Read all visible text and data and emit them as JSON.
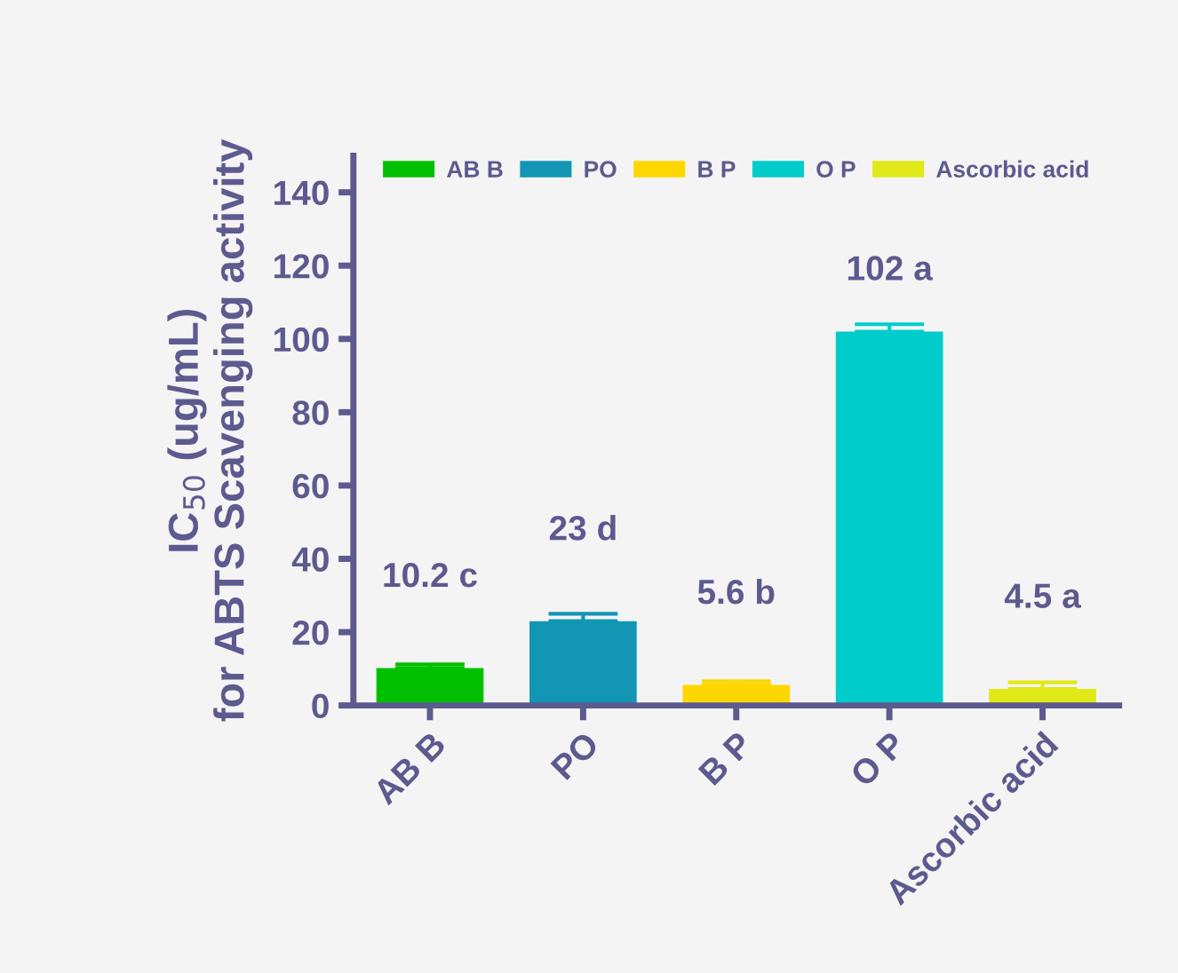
{
  "chart_data": {
    "type": "bar",
    "ylabel": "IC$_{50}$ (ug/mL)\nfor ABTS Scavenging activity",
    "categories": [
      "AB B",
      "PO",
      "B P",
      "O P",
      "Ascorbic acid"
    ],
    "series": [
      {
        "name": "AB B",
        "color": "#00c000",
        "values": [
          10.2,
          null,
          null,
          null,
          null
        ],
        "errors": [
          1,
          null,
          null,
          null,
          null
        ],
        "value_labels": [
          "10.2 c",
          null,
          null,
          null,
          null
        ]
      },
      {
        "name": "PO",
        "color": "#1296b4",
        "values": [
          null,
          23,
          null,
          null,
          null
        ],
        "errors": [
          null,
          2,
          null,
          null,
          null
        ],
        "value_labels": [
          null,
          "23 d",
          null,
          null,
          null
        ]
      },
      {
        "name": "B P",
        "color": "#ffd700",
        "values": [
          null,
          null,
          5.6,
          null,
          null
        ],
        "errors": [
          null,
          null,
          1,
          null,
          null
        ],
        "value_labels": [
          null,
          null,
          "5.6 b",
          null,
          null
        ]
      },
      {
        "name": "O P",
        "color": "#00cccc",
        "values": [
          null,
          null,
          null,
          102,
          null
        ],
        "errors": [
          null,
          null,
          null,
          2,
          null
        ],
        "value_labels": [
          null,
          null,
          null,
          "102 a",
          null
        ]
      },
      {
        "name": "Ascorbic acid",
        "color": "#e0e818",
        "values": [
          null,
          null,
          null,
          null,
          4.5
        ],
        "errors": [
          null,
          null,
          null,
          null,
          1.8
        ],
        "value_labels": [
          null,
          null,
          null,
          null,
          "4.5 a"
        ]
      }
    ],
    "ylim": [
      0,
      150
    ],
    "yticks": [
      0,
      20,
      40,
      60,
      80,
      100,
      120,
      140
    ],
    "grid": false,
    "legend": "top"
  }
}
